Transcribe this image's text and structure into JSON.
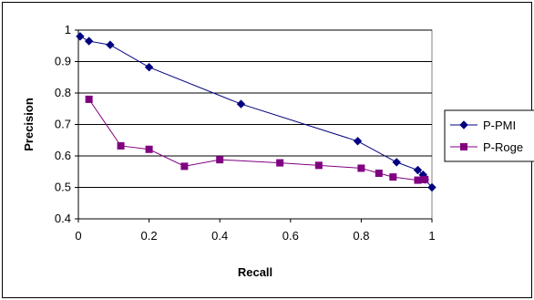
{
  "chart_data": {
    "type": "line",
    "title": "",
    "xlabel": "Recall",
    "ylabel": "Precision",
    "xlim": [
      0,
      1
    ],
    "ylim": [
      0.4,
      1
    ],
    "xticks": [
      "0",
      "0.2",
      "0.4",
      "0.6",
      "0.8",
      "1"
    ],
    "yticks": [
      "0.4",
      "0.5",
      "0.6",
      "0.7",
      "0.8",
      "0.9",
      "1"
    ],
    "grid": "horizontal",
    "legend_position": "right",
    "series": [
      {
        "name": "P-PMI",
        "color": "#000080",
        "marker": "diamond",
        "x": [
          0.005,
          0.03,
          0.09,
          0.2,
          0.46,
          0.79,
          0.9,
          0.96,
          0.975,
          0.98,
          1.0
        ],
        "y": [
          0.98,
          0.965,
          0.953,
          0.882,
          0.765,
          0.647,
          0.58,
          0.555,
          0.54,
          0.525,
          0.5
        ]
      },
      {
        "name": "P-Roge",
        "color": "#800080",
        "marker": "square",
        "x": [
          0.03,
          0.12,
          0.2,
          0.3,
          0.4,
          0.57,
          0.68,
          0.8,
          0.85,
          0.89,
          0.96,
          0.98
        ],
        "y": [
          0.78,
          0.632,
          0.621,
          0.567,
          0.588,
          0.578,
          0.57,
          0.561,
          0.545,
          0.533,
          0.523,
          0.525
        ]
      }
    ]
  }
}
